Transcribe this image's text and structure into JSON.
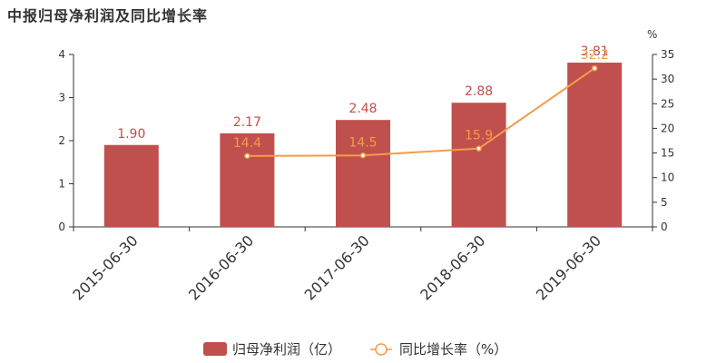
{
  "title": "中报归母净利润及同比增长率",
  "colors": {
    "bar": "#c0504d",
    "line": "#f39c4a",
    "axis": "#333333"
  },
  "chart_data": {
    "type": "bar",
    "categories": [
      "2015-06-30",
      "2016-06-30",
      "2017-06-30",
      "2018-06-30",
      "2019-06-30"
    ],
    "series": [
      {
        "name": "归母净利润（亿）",
        "type": "bar",
        "axis": "left",
        "values": [
          1.9,
          2.17,
          2.48,
          2.88,
          3.81
        ],
        "labels": [
          "1.90",
          "2.17",
          "2.48",
          "2.88",
          "3.81"
        ]
      },
      {
        "name": "同比增长率（%）",
        "type": "line",
        "axis": "right",
        "values": [
          null,
          14.4,
          14.5,
          15.9,
          32.2
        ],
        "labels": [
          "",
          "14.4",
          "14.5",
          "15.9",
          "32.2"
        ]
      }
    ],
    "y_left": {
      "min": 0,
      "max": 4,
      "ticks": [
        "0",
        "1",
        "2",
        "3",
        "4"
      ]
    },
    "y_right": {
      "min": 0,
      "max": 35,
      "unit": "%",
      "ticks": [
        "0",
        "5",
        "10",
        "15",
        "20",
        "25",
        "30",
        "35"
      ]
    },
    "legend": {
      "position": "bottom"
    }
  }
}
